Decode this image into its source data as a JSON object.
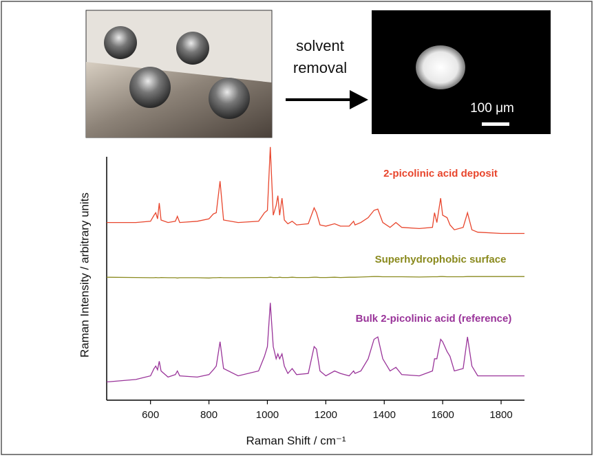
{
  "figure": {
    "arrow_label": [
      "solvent",
      "removal"
    ],
    "scale_label": "100 μm"
  },
  "chart_data": {
    "type": "line",
    "x_label": "Raman Shift / cm⁻¹",
    "y_label": "Raman Intensity / arbitrary units",
    "xlim": [
      450,
      1880
    ],
    "xticks": [
      600,
      800,
      1000,
      1200,
      1400,
      1600,
      1800
    ],
    "ylim": [
      0,
      100
    ],
    "x": [
      450,
      550,
      600,
      612,
      618,
      624,
      630,
      636,
      660,
      685,
      692,
      700,
      760,
      800,
      815,
      825,
      838,
      850,
      900,
      970,
      990,
      1000,
      1010,
      1020,
      1030,
      1036,
      1042,
      1050,
      1058,
      1070,
      1085,
      1100,
      1140,
      1160,
      1168,
      1180,
      1200,
      1230,
      1250,
      1280,
      1295,
      1300,
      1320,
      1345,
      1365,
      1378,
      1395,
      1420,
      1440,
      1460,
      1520,
      1565,
      1572,
      1580,
      1593,
      1600,
      1615,
      1625,
      1640,
      1670,
      1685,
      1700,
      1720,
      1800,
      1880
    ],
    "series": [
      {
        "name": "2-picolinic acid deposit",
        "color": "#e8452c",
        "values": [
          73,
          73,
          73.5,
          76,
          77,
          74.5,
          81,
          74,
          73,
          73.5,
          75.5,
          73,
          73.5,
          74.5,
          76.5,
          77,
          90,
          74,
          73,
          73.5,
          77,
          78,
          104,
          76,
          80,
          84,
          76,
          83,
          74,
          72.5,
          73.5,
          72,
          72.5,
          79,
          77,
          72,
          71.5,
          72.5,
          71.5,
          71.5,
          73.5,
          72,
          73,
          75,
          78,
          78.5,
          73,
          71,
          73,
          71,
          70.5,
          71,
          77,
          73,
          83,
          76,
          75,
          72,
          70,
          71,
          77,
          70,
          69,
          68.5,
          68.5
        ]
      },
      {
        "name": "Superhydrophobic surface",
        "color": "#8a8a1e",
        "values": [
          50.5,
          50.4,
          50.3,
          50.3,
          50.4,
          50.3,
          50.3,
          50.4,
          50.3,
          50.3,
          50.2,
          50.3,
          50.3,
          50.2,
          50.3,
          50.3,
          50.4,
          50.3,
          50.3,
          50.4,
          50.4,
          50.4,
          50.5,
          50.4,
          50.4,
          50.4,
          50.5,
          50.4,
          50.4,
          50.4,
          50.5,
          50.4,
          50.4,
          50.5,
          50.5,
          50.4,
          50.4,
          50.5,
          50.4,
          50.5,
          50.5,
          50.5,
          50.6,
          50.7,
          50.8,
          50.8,
          50.7,
          50.7,
          50.7,
          50.7,
          50.6,
          50.7,
          50.7,
          50.7,
          50.8,
          50.8,
          50.7,
          50.7,
          50.7,
          50.7,
          50.8,
          50.8,
          50.8,
          50.8,
          50.8
        ]
      },
      {
        "name": "Bulk 2-picolinic acid (reference)",
        "color": "#993399",
        "values": [
          7.5,
          8.5,
          10,
          13,
          14,
          12.5,
          16,
          12,
          9.5,
          10.5,
          12,
          10,
          9.5,
          10.5,
          12.5,
          14,
          24,
          13,
          10,
          12,
          18,
          22,
          40,
          22,
          17,
          19,
          17,
          19,
          14,
          11,
          13,
          10.5,
          11,
          22,
          21,
          12,
          10,
          12,
          11,
          10,
          12,
          11,
          12,
          17,
          25,
          26,
          17,
          12,
          13.5,
          10.5,
          10,
          12,
          17,
          17,
          25,
          24,
          20,
          18,
          12,
          13,
          26,
          14,
          10,
          10,
          10
        ]
      }
    ]
  }
}
